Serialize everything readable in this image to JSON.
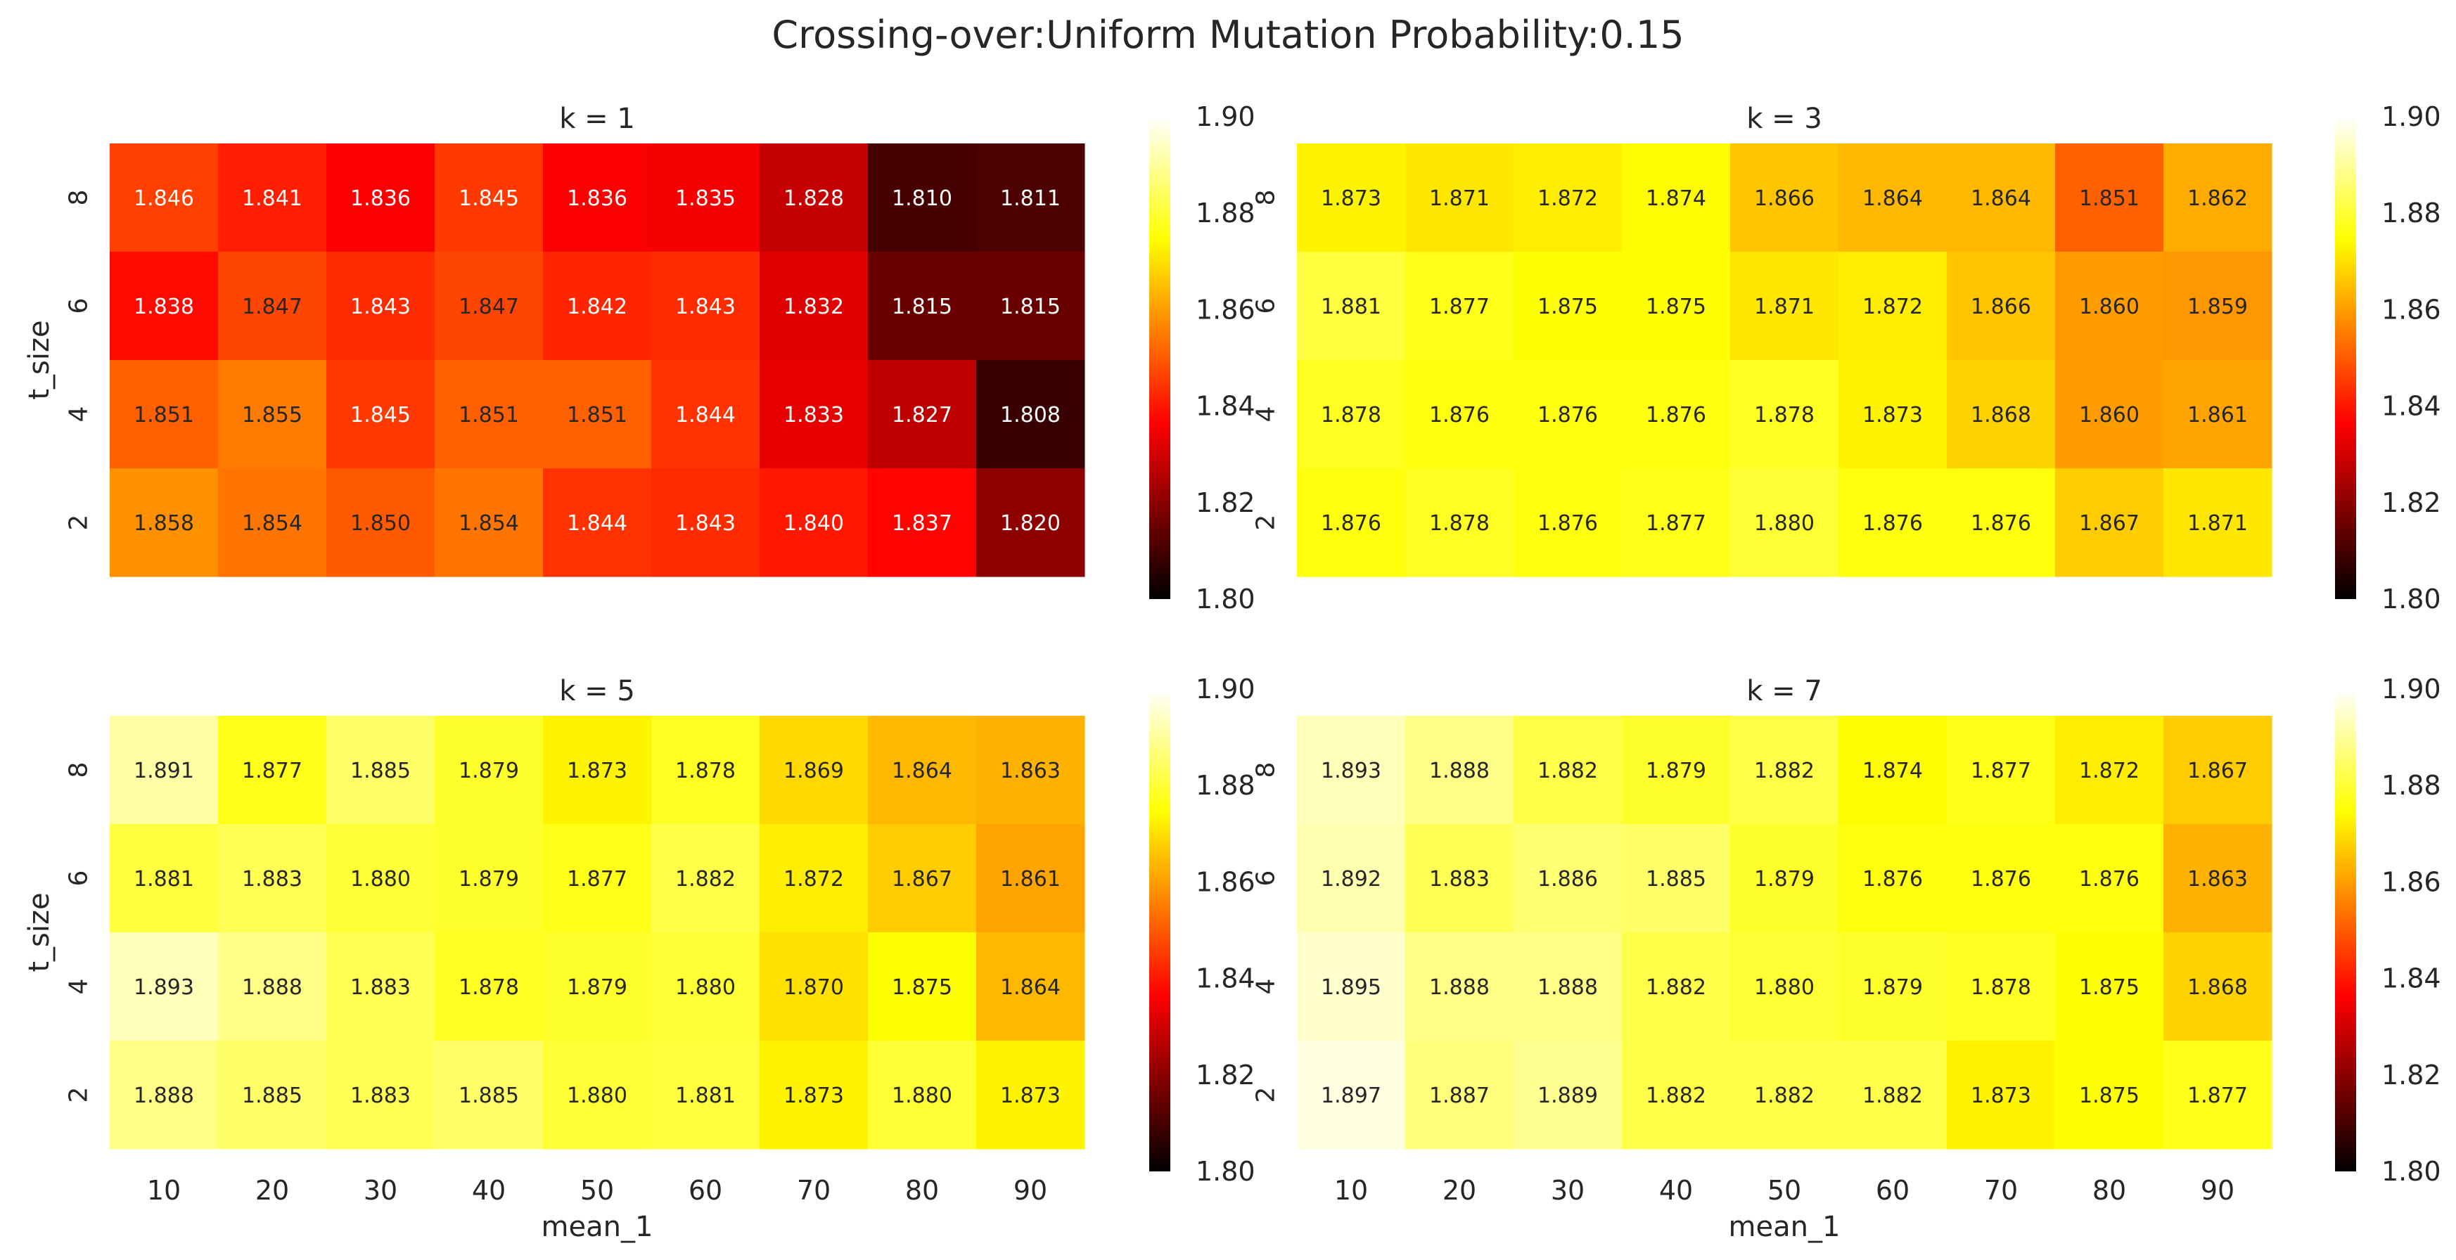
{
  "title": "Crossing-over:Uniform Mutation Probability:0.15",
  "chart_data": [
    {
      "type": "heatmap",
      "title": "k = 1",
      "xlabel": "",
      "ylabel": "t_size",
      "x_categories": [
        "10",
        "20",
        "30",
        "40",
        "50",
        "60",
        "70",
        "80",
        "90"
      ],
      "y_categories": [
        "8",
        "6",
        "4",
        "2"
      ],
      "values": [
        [
          1.846,
          1.841,
          1.836,
          1.845,
          1.836,
          1.835,
          1.828,
          1.81,
          1.811
        ],
        [
          1.838,
          1.847,
          1.843,
          1.847,
          1.842,
          1.843,
          1.832,
          1.815,
          1.815
        ],
        [
          1.851,
          1.855,
          1.845,
          1.851,
          1.851,
          1.844,
          1.833,
          1.827,
          1.808
        ],
        [
          1.858,
          1.854,
          1.85,
          1.854,
          1.844,
          1.843,
          1.84,
          1.837,
          1.82
        ]
      ],
      "colorscale": "hot",
      "vmin": 1.8,
      "vmax": 1.9,
      "colorbar_ticks": [
        "1.80",
        "1.82",
        "1.84",
        "1.86",
        "1.88",
        "1.90"
      ]
    },
    {
      "type": "heatmap",
      "title": "k = 3",
      "xlabel": "",
      "ylabel": "",
      "x_categories": [
        "10",
        "20",
        "30",
        "40",
        "50",
        "60",
        "70",
        "80",
        "90"
      ],
      "y_categories": [
        "8",
        "6",
        "4",
        "2"
      ],
      "values": [
        [
          1.873,
          1.871,
          1.872,
          1.874,
          1.866,
          1.864,
          1.864,
          1.851,
          1.862
        ],
        [
          1.881,
          1.877,
          1.875,
          1.875,
          1.871,
          1.872,
          1.866,
          1.86,
          1.859
        ],
        [
          1.878,
          1.876,
          1.876,
          1.876,
          1.878,
          1.873,
          1.868,
          1.86,
          1.861
        ],
        [
          1.876,
          1.878,
          1.876,
          1.877,
          1.88,
          1.876,
          1.876,
          1.867,
          1.871
        ]
      ],
      "colorscale": "hot",
      "vmin": 1.8,
      "vmax": 1.9,
      "colorbar_ticks": [
        "1.80",
        "1.82",
        "1.84",
        "1.86",
        "1.88",
        "1.90"
      ]
    },
    {
      "type": "heatmap",
      "title": "k = 5",
      "xlabel": "mean_1",
      "ylabel": "t_size",
      "x_categories": [
        "10",
        "20",
        "30",
        "40",
        "50",
        "60",
        "70",
        "80",
        "90"
      ],
      "y_categories": [
        "8",
        "6",
        "4",
        "2"
      ],
      "values": [
        [
          1.891,
          1.877,
          1.885,
          1.879,
          1.873,
          1.878,
          1.869,
          1.864,
          1.863
        ],
        [
          1.881,
          1.883,
          1.88,
          1.879,
          1.877,
          1.882,
          1.872,
          1.867,
          1.861
        ],
        [
          1.893,
          1.888,
          1.883,
          1.878,
          1.879,
          1.88,
          1.87,
          1.875,
          1.864
        ],
        [
          1.888,
          1.885,
          1.883,
          1.885,
          1.88,
          1.881,
          1.873,
          1.88,
          1.873
        ]
      ],
      "colorscale": "hot",
      "vmin": 1.8,
      "vmax": 1.9,
      "colorbar_ticks": [
        "1.80",
        "1.82",
        "1.84",
        "1.86",
        "1.88",
        "1.90"
      ]
    },
    {
      "type": "heatmap",
      "title": "k = 7",
      "xlabel": "mean_1",
      "ylabel": "",
      "x_categories": [
        "10",
        "20",
        "30",
        "40",
        "50",
        "60",
        "70",
        "80",
        "90"
      ],
      "y_categories": [
        "8",
        "6",
        "4",
        "2"
      ],
      "values": [
        [
          1.893,
          1.888,
          1.882,
          1.879,
          1.882,
          1.874,
          1.877,
          1.872,
          1.867
        ],
        [
          1.892,
          1.883,
          1.886,
          1.885,
          1.879,
          1.876,
          1.876,
          1.876,
          1.863
        ],
        [
          1.895,
          1.888,
          1.888,
          1.882,
          1.88,
          1.879,
          1.878,
          1.875,
          1.868
        ],
        [
          1.897,
          1.887,
          1.889,
          1.882,
          1.882,
          1.882,
          1.873,
          1.875,
          1.877
        ]
      ],
      "colorscale": "hot",
      "vmin": 1.8,
      "vmax": 1.9,
      "colorbar_ticks": [
        "1.80",
        "1.82",
        "1.84",
        "1.86",
        "1.88",
        "1.90"
      ]
    }
  ]
}
